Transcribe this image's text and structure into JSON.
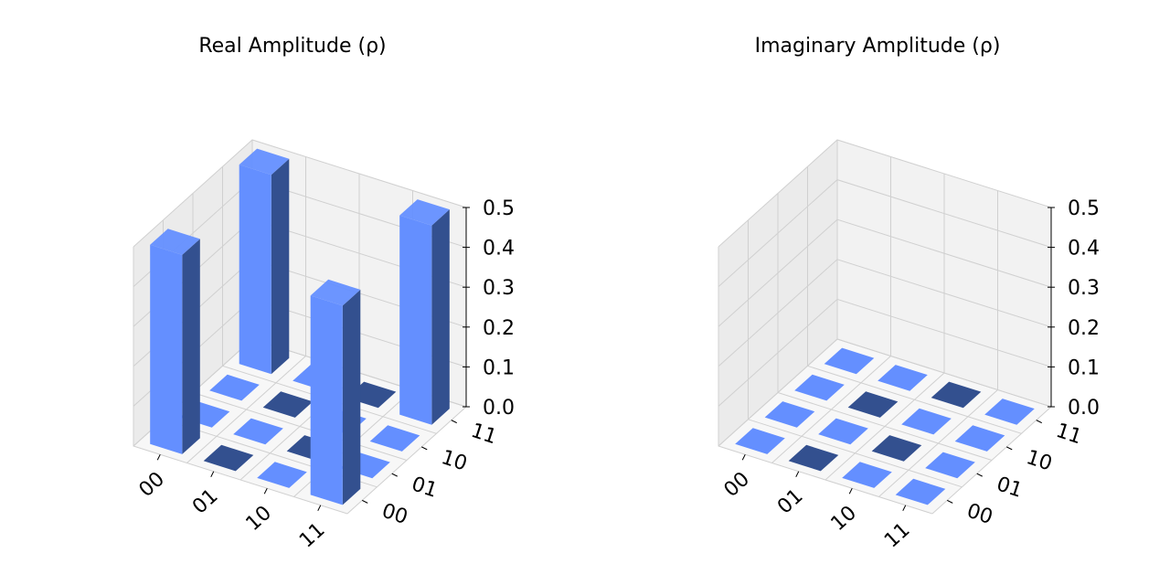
{
  "chart_data": [
    {
      "type": "bar3d",
      "title": "Real Amplitude (ρ)",
      "row_labels": [
        "00",
        "01",
        "10",
        "11"
      ],
      "col_labels": [
        "00",
        "01",
        "10",
        "11"
      ],
      "zlim": [
        0,
        0.5
      ],
      "zticks": [
        "0.0",
        "0.1",
        "0.2",
        "0.3",
        "0.4",
        "0.5"
      ],
      "values": [
        [
          0.5,
          0,
          0,
          0.5
        ],
        [
          0,
          0,
          0,
          0
        ],
        [
          0,
          0,
          0,
          0
        ],
        [
          0.5,
          0,
          0,
          0.5
        ]
      ],
      "grid": true
    },
    {
      "type": "bar3d",
      "title": "Imaginary Amplitude (ρ)",
      "row_labels": [
        "00",
        "01",
        "10",
        "11"
      ],
      "col_labels": [
        "00",
        "01",
        "10",
        "11"
      ],
      "zlim": [
        0,
        0.5
      ],
      "zticks": [
        "0.0",
        "0.1",
        "0.2",
        "0.3",
        "0.4",
        "0.5"
      ],
      "values": [
        [
          0,
          0,
          0,
          0
        ],
        [
          0,
          0,
          0,
          0
        ],
        [
          0,
          0,
          0,
          0
        ],
        [
          0,
          0,
          0,
          0
        ]
      ],
      "grid": true
    }
  ],
  "colors": {
    "bar_top": "#648fff",
    "bar_front": "#648fff",
    "bar_side": "#33508f",
    "pane_back": "#f2f2f2",
    "pane_side": "#ebebeb",
    "pane_floor": "#f7f7f7",
    "grid": "#d0d0d0"
  }
}
